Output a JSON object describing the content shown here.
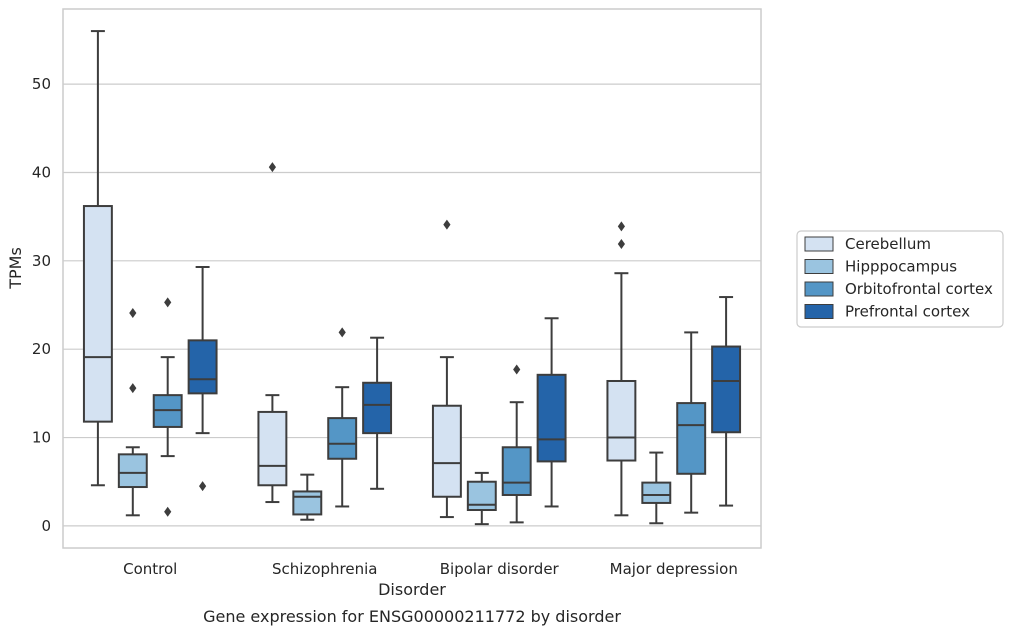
{
  "chart_data": {
    "type": "boxplot",
    "caption": "Gene expression for ENSG00000211772 by disorder",
    "xlabel": "Disorder",
    "ylabel": "TPMs",
    "ylim": [
      -2.5,
      58.5
    ],
    "yticks": [
      0,
      10,
      20,
      30,
      40,
      50
    ],
    "grid": "horizontal",
    "legend_position": "right",
    "categories": [
      "Control",
      "Schizophrenia",
      "Bipolar disorder",
      "Major depression"
    ],
    "series": [
      {
        "name": "Cerebellum",
        "color": "#d4e2f2",
        "boxes": [
          {
            "whislo": 4.6,
            "q1": 11.8,
            "med": 19.1,
            "q3": 36.2,
            "whishi": 56.0,
            "fliers": []
          },
          {
            "whislo": 2.7,
            "q1": 4.6,
            "med": 6.8,
            "q3": 12.9,
            "whishi": 14.8,
            "fliers": [
              40.6
            ]
          },
          {
            "whislo": 1.0,
            "q1": 3.3,
            "med": 7.1,
            "q3": 13.6,
            "whishi": 19.1,
            "fliers": [
              34.1
            ]
          },
          {
            "whislo": 1.2,
            "q1": 7.4,
            "med": 10.0,
            "q3": 16.4,
            "whishi": 28.6,
            "fliers": [
              31.9,
              33.9
            ]
          }
        ]
      },
      {
        "name": "Hipppocampus",
        "color": "#9ac4e0",
        "boxes": [
          {
            "whislo": 1.2,
            "q1": 4.4,
            "med": 6.0,
            "q3": 8.1,
            "whishi": 8.9,
            "fliers": [
              15.6,
              24.1
            ]
          },
          {
            "whislo": 0.7,
            "q1": 1.3,
            "med": 3.3,
            "q3": 3.9,
            "whishi": 5.8,
            "fliers": []
          },
          {
            "whislo": 0.2,
            "q1": 1.8,
            "med": 2.4,
            "q3": 5.0,
            "whishi": 6.0,
            "fliers": []
          },
          {
            "whislo": 0.3,
            "q1": 2.6,
            "med": 3.5,
            "q3": 4.9,
            "whishi": 8.3,
            "fliers": []
          }
        ]
      },
      {
        "name": "Orbitofrontal cortex",
        "color": "#5496c6",
        "boxes": [
          {
            "whislo": 7.9,
            "q1": 11.2,
            "med": 13.1,
            "q3": 14.8,
            "whishi": 19.1,
            "fliers": [
              1.6,
              25.3
            ]
          },
          {
            "whislo": 2.2,
            "q1": 7.6,
            "med": 9.3,
            "q3": 12.2,
            "whishi": 15.7,
            "fliers": [
              21.9
            ]
          },
          {
            "whislo": 0.4,
            "q1": 3.5,
            "med": 4.9,
            "q3": 8.9,
            "whishi": 14.0,
            "fliers": [
              17.7
            ]
          },
          {
            "whislo": 1.5,
            "q1": 5.9,
            "med": 11.4,
            "q3": 13.9,
            "whishi": 21.9,
            "fliers": []
          }
        ]
      },
      {
        "name": "Prefrontal cortex",
        "color": "#2464a9",
        "boxes": [
          {
            "whislo": 10.5,
            "q1": 15.0,
            "med": 16.6,
            "q3": 21.0,
            "whishi": 29.3,
            "fliers": [
              4.5
            ]
          },
          {
            "whislo": 4.2,
            "q1": 10.5,
            "med": 13.7,
            "q3": 16.2,
            "whishi": 21.3,
            "fliers": []
          },
          {
            "whislo": 2.2,
            "q1": 7.3,
            "med": 9.8,
            "q3": 17.1,
            "whishi": 23.5,
            "fliers": []
          },
          {
            "whislo": 2.3,
            "q1": 10.6,
            "med": 16.4,
            "q3": 20.3,
            "whishi": 25.9,
            "fliers": []
          }
        ]
      }
    ]
  }
}
